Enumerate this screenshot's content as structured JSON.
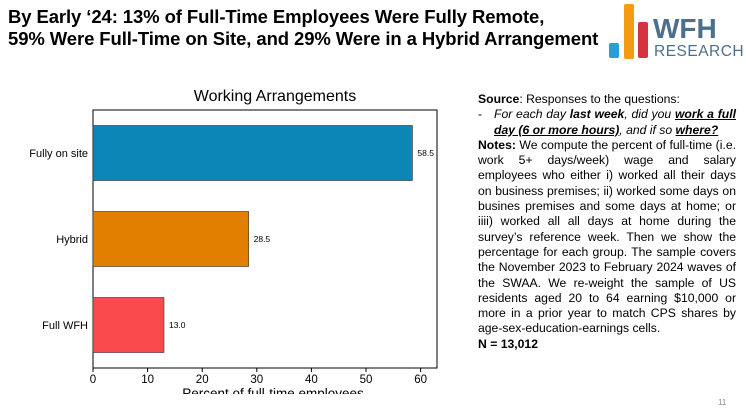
{
  "headline": {
    "line1": "By Early ‘24: 13% of Full-Time Employees Were Fully Remote,",
    "line2": "59% Were Full-Time on Site, and 29% Were in a Hybrid Arrangement"
  },
  "logo": {
    "word1": "WFH",
    "word2": "RESEARCH",
    "bar_colors": [
      "#E8A33B",
      "#D6333E",
      "#F39C12",
      "#2A9FD6"
    ],
    "text_color": "#4C6F8C"
  },
  "colors": {
    "fully_on_site": "#0C86B7",
    "hybrid": "#E27F00",
    "full_wfh": "#FA4A4E"
  },
  "chart_data": {
    "type": "bar",
    "orientation": "horizontal",
    "title": "Working Arrangements",
    "xlabel": "Percent of full-time employees",
    "categories": [
      "Fully on site",
      "Hybrid",
      "Full WFH"
    ],
    "values": [
      58.5,
      28.5,
      13.0
    ],
    "data_labels": [
      "58.5",
      "28.5",
      "13.0"
    ],
    "xlim": [
      0,
      63
    ],
    "xticks": [
      0,
      10,
      20,
      30,
      40,
      50,
      60
    ],
    "grid": false,
    "legend": "none"
  },
  "source": {
    "label": "Source",
    "text": ": Responses to the questions:",
    "bullet": "-",
    "q1": "For each day ",
    "q2": "last week",
    "q3": ", did you ",
    "q4": "work a full day (6 or more hours)",
    "q5": ", and if so ",
    "q6": "where?"
  },
  "notes": {
    "label": "Notes:",
    "text": " We compute the percent of full-time (i.e. work 5+ days/week) wage and salary employees who either i) worked all their days on business premises; ii) worked some days on busines premises and some days at home; or iiii) worked all all days at home during the survey’s reference week. Then we show the percentage for each group. The sample covers the November 2023 to February 2024 waves of the SWAA. We re-weight the sample of US residents aged 20 to 64 earning $10,000 or more in a prior year to match CPS shares by age-sex-education-earnings cells."
  },
  "n_value": "N = 13,012",
  "page_number": "11"
}
